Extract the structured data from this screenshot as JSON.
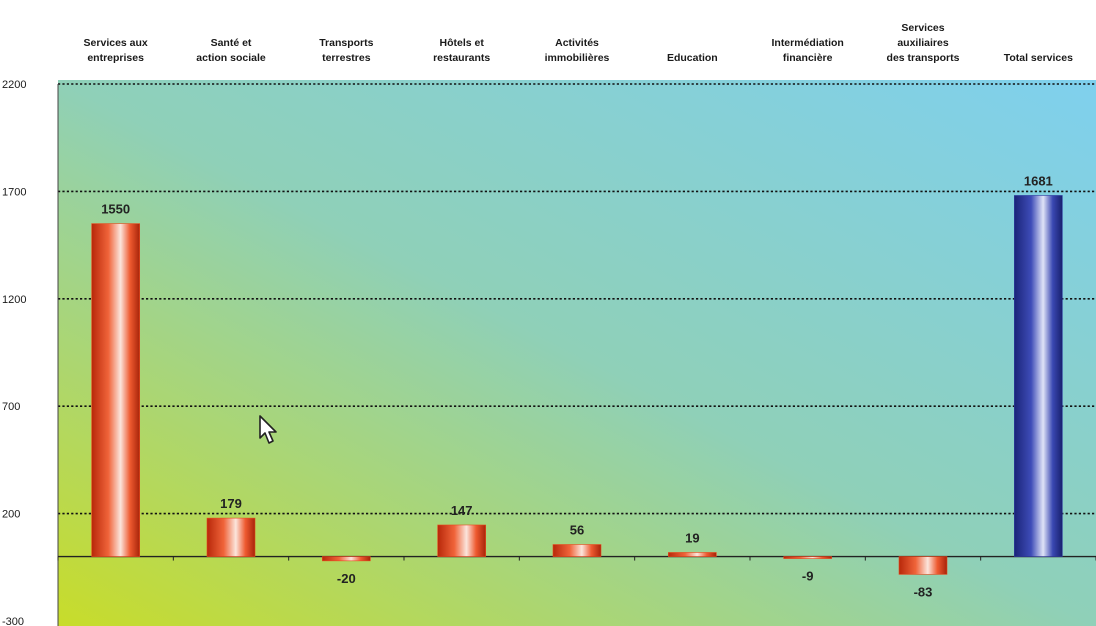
{
  "chart_data": {
    "type": "bar",
    "categories": [
      [
        "Services aux",
        "entreprises"
      ],
      [
        "Santé et",
        "action sociale"
      ],
      [
        "Transports",
        "terrestres"
      ],
      [
        "Hôtels et",
        "restaurants"
      ],
      [
        "Activités",
        "immobilières"
      ],
      [
        "Education"
      ],
      [
        "Intermédiation",
        "financière"
      ],
      [
        "Services",
        "auxiliaires",
        "des transports"
      ],
      [
        "Total services"
      ]
    ],
    "values": [
      1550,
      179,
      -20,
      147,
      56,
      19,
      -9,
      -83,
      1681
    ],
    "value_labels": [
      "1550",
      "179",
      "-20",
      "147",
      "56",
      "19",
      "-9",
      "-83",
      "1681"
    ],
    "bar_colors": [
      "#e8471c",
      "#e8471c",
      "#e8471c",
      "#e8471c",
      "#e8471c",
      "#e8471c",
      "#e8471c",
      "#e8471c",
      "#2e3a9e"
    ],
    "ylim": [
      -300,
      2200
    ],
    "yticks": [
      -300,
      200,
      700,
      1200,
      1700,
      2200
    ],
    "ytick_labels": [
      "-300",
      "200",
      "700",
      "1200",
      "1700",
      "2200"
    ],
    "grid": true,
    "background_gradient": [
      "#c8dc2a",
      "#8fd0b8",
      "#7fd0ee"
    ],
    "cursor_icon": "mouse-pointer-icon"
  }
}
